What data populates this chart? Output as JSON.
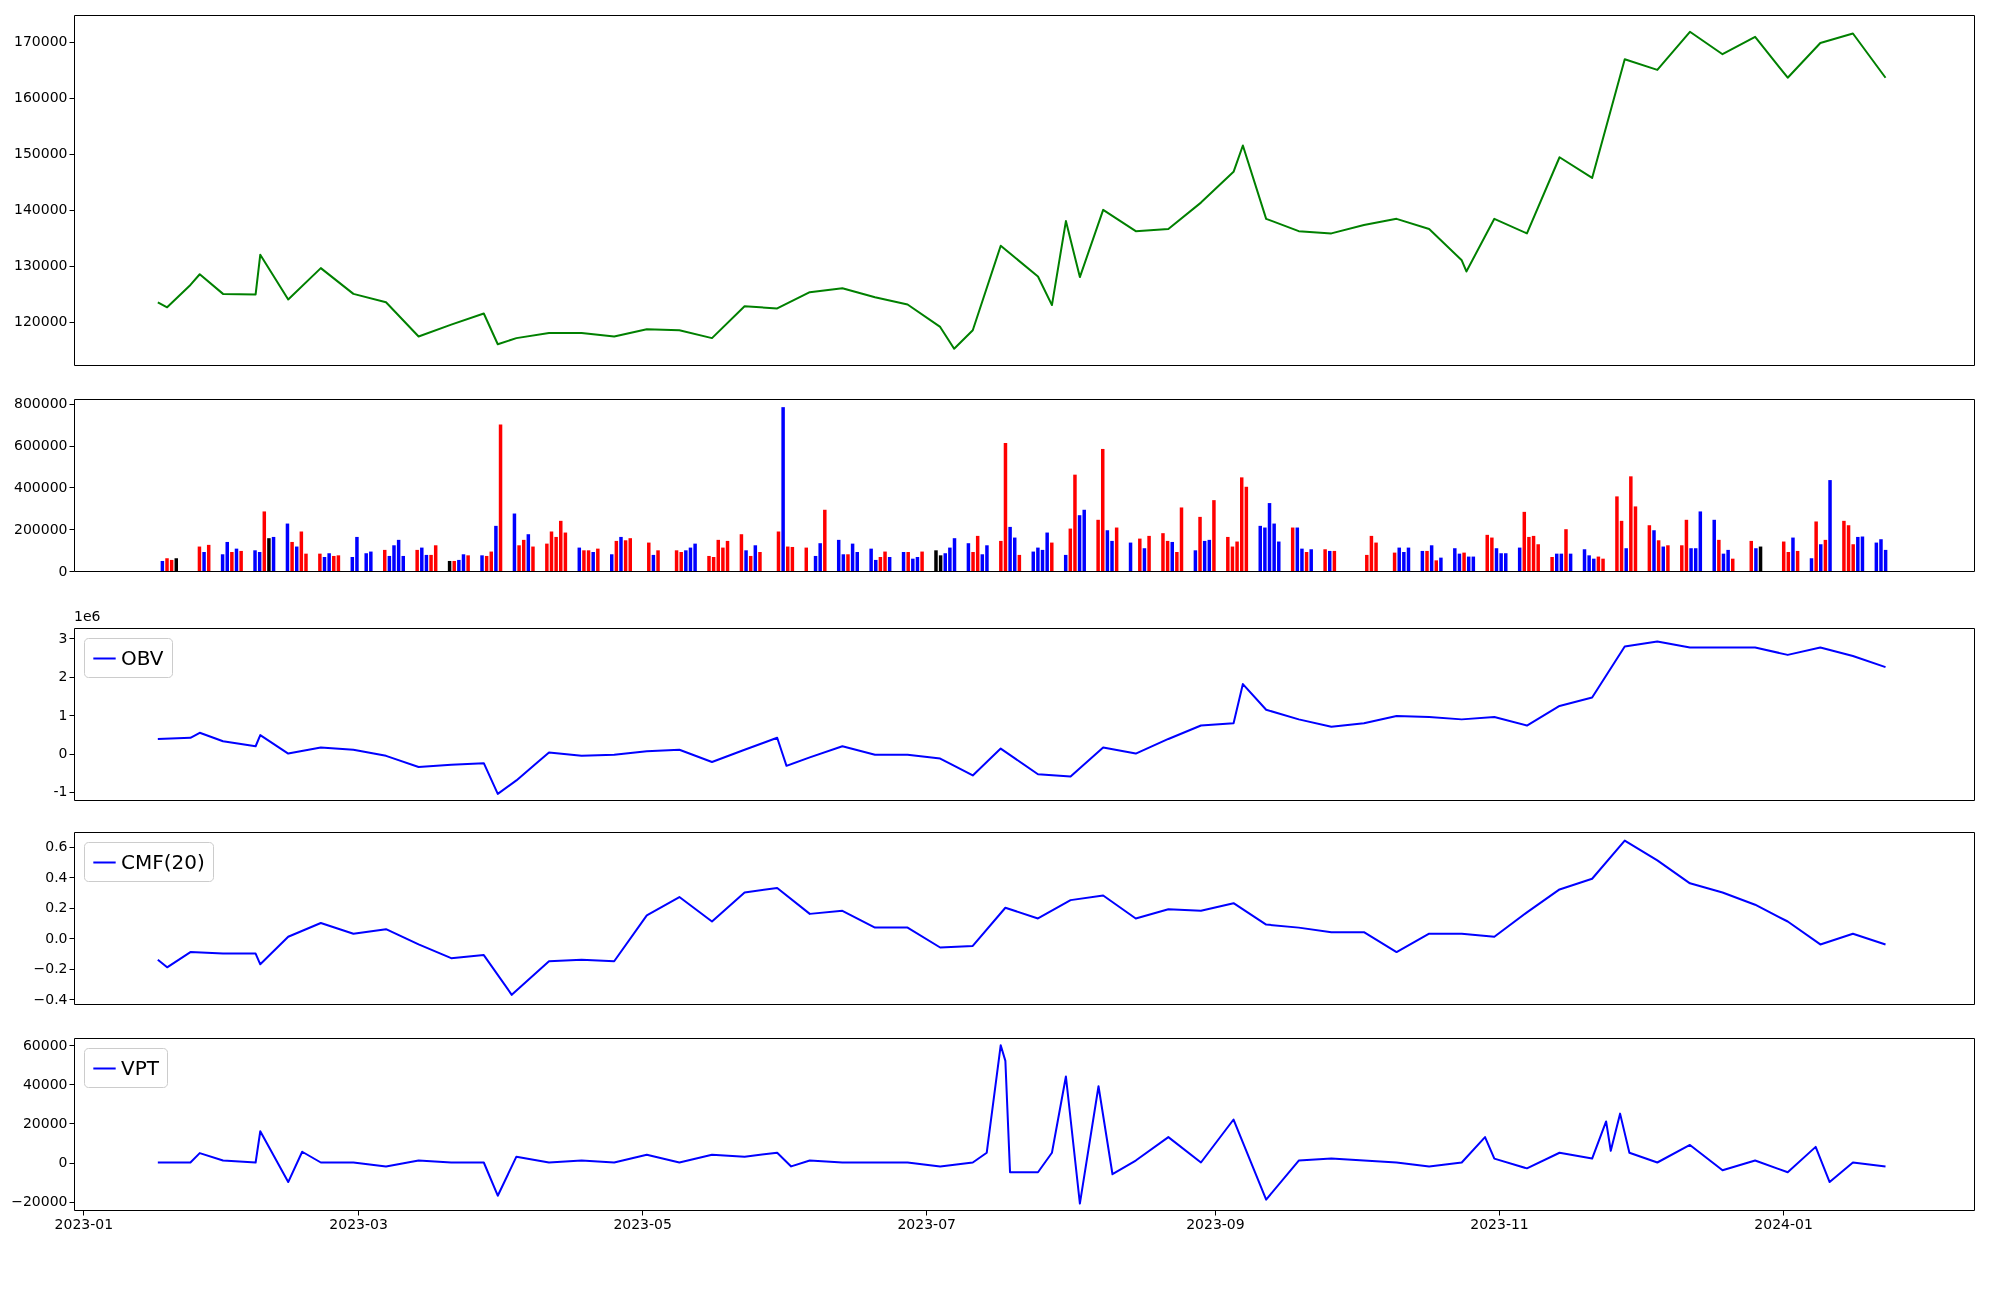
{
  "chart_data": [
    {
      "type": "line",
      "color": "#008000",
      "xlim": [
        "2022-12-30",
        "2024-02-11"
      ],
      "ylim": [
        112300,
        174800
      ],
      "yticks": [
        120000,
        130000,
        140000,
        150000,
        160000,
        170000
      ],
      "tick_labels": "y",
      "x": [
        "2023-01-17",
        "2023-01-19",
        "2023-01-24",
        "2023-01-26",
        "2023-01-31",
        "2023-02-07",
        "2023-02-08",
        "2023-02-14",
        "2023-02-21",
        "2023-02-28",
        "2023-03-07",
        "2023-03-14",
        "2023-03-21",
        "2023-03-28",
        "2023-03-31",
        "2023-04-04",
        "2023-04-11",
        "2023-04-18",
        "2023-04-25",
        "2023-05-02",
        "2023-05-09",
        "2023-05-16",
        "2023-05-23",
        "2023-05-30",
        "2023-06-06",
        "2023-06-13",
        "2023-06-20",
        "2023-06-27",
        "2023-07-04",
        "2023-07-07",
        "2023-07-11",
        "2023-07-17",
        "2023-07-25",
        "2023-07-28",
        "2023-07-31",
        "2023-08-03",
        "2023-08-08",
        "2023-08-15",
        "2023-08-22",
        "2023-08-29",
        "2023-09-05",
        "2023-09-07",
        "2023-09-12",
        "2023-09-19",
        "2023-09-26",
        "2023-10-03",
        "2023-10-10",
        "2023-10-17",
        "2023-10-24",
        "2023-10-25",
        "2023-10-31",
        "2023-11-07",
        "2023-11-14",
        "2023-11-21",
        "2023-11-28",
        "2023-12-05",
        "2023-12-12",
        "2023-12-19",
        "2023-12-26",
        "2024-01-02",
        "2024-01-09",
        "2024-01-16",
        "2024-01-23"
      ],
      "values": [
        123500,
        122600,
        126600,
        128500,
        125000,
        124900,
        132000,
        124000,
        129600,
        125000,
        123500,
        117400,
        119500,
        121500,
        116000,
        117100,
        118000,
        118000,
        117400,
        118700,
        118500,
        117100,
        122800,
        122400,
        125300,
        126000,
        124400,
        123100,
        119100,
        115200,
        118500,
        133600,
        128100,
        123000,
        138000,
        128000,
        140000,
        136200,
        136600,
        141300,
        146800,
        151500,
        138400,
        136200,
        135800,
        137300,
        138400,
        136600,
        131000,
        129000,
        138400,
        135800,
        149400,
        145700,
        166900,
        165000,
        171800,
        167800,
        170900,
        163600,
        169800,
        171500,
        163600
      ]
    },
    {
      "type": "bar",
      "xlim": [
        "2022-12-30",
        "2024-02-11"
      ],
      "ylim": [
        0,
        823000
      ],
      "yticks": [
        0,
        200000,
        400000,
        600000,
        800000
      ],
      "tick_labels": "y",
      "x": [
        "2023-01-17",
        "2023-01-18",
        "2023-01-19",
        "2023-01-20",
        "2023-01-25",
        "2023-01-26",
        "2023-01-27",
        "2023-01-30",
        "2023-01-31",
        "2023-02-01",
        "2023-02-02",
        "2023-02-03",
        "2023-02-06",
        "2023-02-07",
        "2023-02-08",
        "2023-02-09",
        "2023-02-10",
        "2023-02-13",
        "2023-02-14",
        "2023-02-15",
        "2023-02-16",
        "2023-02-17",
        "2023-02-20",
        "2023-02-21",
        "2023-02-22",
        "2023-02-23",
        "2023-02-24",
        "2023-02-27",
        "2023-02-28",
        "2023-03-02",
        "2023-03-03",
        "2023-03-06",
        "2023-03-07",
        "2023-03-08",
        "2023-03-09",
        "2023-03-10",
        "2023-03-13",
        "2023-03-14",
        "2023-03-15",
        "2023-03-16",
        "2023-03-17",
        "2023-03-20",
        "2023-03-21",
        "2023-03-22",
        "2023-03-23",
        "2023-03-24",
        "2023-03-27",
        "2023-03-28",
        "2023-03-29",
        "2023-03-30",
        "2023-03-31",
        "2023-04-03",
        "2023-04-04",
        "2023-04-05",
        "2023-04-06",
        "2023-04-07",
        "2023-04-10",
        "2023-04-11",
        "2023-04-12",
        "2023-04-13",
        "2023-04-14",
        "2023-04-17",
        "2023-04-18",
        "2023-04-19",
        "2023-04-20",
        "2023-04-21",
        "2023-04-24",
        "2023-04-25",
        "2023-04-26",
        "2023-04-27",
        "2023-04-28",
        "2023-05-02",
        "2023-05-03",
        "2023-05-04",
        "2023-05-08",
        "2023-05-09",
        "2023-05-10",
        "2023-05-11",
        "2023-05-12",
        "2023-05-15",
        "2023-05-16",
        "2023-05-17",
        "2023-05-18",
        "2023-05-19",
        "2023-05-22",
        "2023-05-23",
        "2023-05-24",
        "2023-05-25",
        "2023-05-26",
        "2023-05-30",
        "2023-05-31",
        "2023-06-01",
        "2023-06-02",
        "2023-06-05",
        "2023-06-07",
        "2023-06-08",
        "2023-06-09",
        "2023-06-12",
        "2023-06-13",
        "2023-06-14",
        "2023-06-15",
        "2023-06-16",
        "2023-06-19",
        "2023-06-20",
        "2023-06-21",
        "2023-06-22",
        "2023-06-23",
        "2023-06-26",
        "2023-06-27",
        "2023-06-28",
        "2023-06-29",
        "2023-06-30",
        "2023-07-03",
        "2023-07-04",
        "2023-07-05",
        "2023-07-06",
        "2023-07-07",
        "2023-07-10",
        "2023-07-11",
        "2023-07-12",
        "2023-07-13",
        "2023-07-14",
        "2023-07-17",
        "2023-07-18",
        "2023-07-19",
        "2023-07-20",
        "2023-07-21",
        "2023-07-24",
        "2023-07-25",
        "2023-07-26",
        "2023-07-27",
        "2023-07-28",
        "2023-07-31",
        "2023-08-01",
        "2023-08-02",
        "2023-08-03",
        "2023-08-04",
        "2023-08-07",
        "2023-08-08",
        "2023-08-09",
        "2023-08-10",
        "2023-08-11",
        "2023-08-14",
        "2023-08-16",
        "2023-08-17",
        "2023-08-18",
        "2023-08-21",
        "2023-08-22",
        "2023-08-23",
        "2023-08-24",
        "2023-08-25",
        "2023-08-28",
        "2023-08-29",
        "2023-08-30",
        "2023-08-31",
        "2023-09-01",
        "2023-09-04",
        "2023-09-05",
        "2023-09-06",
        "2023-09-07",
        "2023-09-08",
        "2023-09-11",
        "2023-09-12",
        "2023-09-13",
        "2023-09-14",
        "2023-09-15",
        "2023-09-18",
        "2023-09-19",
        "2023-09-20",
        "2023-09-21",
        "2023-09-22",
        "2023-09-25",
        "2023-09-26",
        "2023-09-27",
        "2023-10-04",
        "2023-10-05",
        "2023-10-06",
        "2023-10-10",
        "2023-10-11",
        "2023-10-12",
        "2023-10-13",
        "2023-10-16",
        "2023-10-17",
        "2023-10-18",
        "2023-10-19",
        "2023-10-20",
        "2023-10-23",
        "2023-10-24",
        "2023-10-25",
        "2023-10-26",
        "2023-10-27",
        "2023-10-30",
        "2023-10-31",
        "2023-11-01",
        "2023-11-02",
        "2023-11-03",
        "2023-11-06",
        "2023-11-07",
        "2023-11-08",
        "2023-11-09",
        "2023-11-10",
        "2023-11-13",
        "2023-11-14",
        "2023-11-15",
        "2023-11-16",
        "2023-11-17",
        "2023-11-20",
        "2023-11-21",
        "2023-11-22",
        "2023-11-23",
        "2023-11-24",
        "2023-11-27",
        "2023-11-28",
        "2023-11-29",
        "2023-11-30",
        "2023-12-01",
        "2023-12-04",
        "2023-12-05",
        "2023-12-06",
        "2023-12-07",
        "2023-12-08",
        "2023-12-11",
        "2023-12-12",
        "2023-12-13",
        "2023-12-14",
        "2023-12-15",
        "2023-12-18",
        "2023-12-19",
        "2023-12-20",
        "2023-12-21",
        "2023-12-22",
        "2023-12-26",
        "2023-12-27",
        "2023-12-28",
        "2024-01-02",
        "2024-01-03",
        "2024-01-04",
        "2024-01-05",
        "2024-01-08",
        "2024-01-09",
        "2024-01-10",
        "2024-01-11",
        "2024-01-12",
        "2024-01-15",
        "2024-01-16",
        "2024-01-17",
        "2024-01-18",
        "2024-01-19",
        "2024-01-22",
        "2024-01-23",
        "2024-01-24"
      ],
      "values": [
        48000,
        61000,
        53000,
        61000,
        117000,
        91000,
        125000,
        80000,
        139000,
        91000,
        107000,
        96000,
        99000,
        91000,
        285000,
        157000,
        163000,
        227000,
        139000,
        117000,
        189000,
        83000,
        83000,
        67000,
        85000,
        72000,
        75000,
        67000,
        163000,
        85000,
        93000,
        101000,
        72000,
        123000,
        149000,
        72000,
        101000,
        112000,
        77000,
        77000,
        123000,
        48000,
        48000,
        53000,
        80000,
        75000,
        75000,
        72000,
        93000,
        216000,
        701000,
        275000,
        123000,
        149000,
        176000,
        117000,
        131000,
        189000,
        163000,
        240000,
        184000,
        112000,
        99000,
        99000,
        91000,
        107000,
        80000,
        144000,
        163000,
        147000,
        157000,
        136000,
        77000,
        99000,
        99000,
        91000,
        99000,
        112000,
        131000,
        72000,
        67000,
        149000,
        112000,
        144000,
        176000,
        99000,
        72000,
        123000,
        91000,
        189000,
        784000,
        117000,
        115000,
        112000,
        72000,
        133000,
        293000,
        149000,
        80000,
        80000,
        131000,
        91000,
        107000,
        53000,
        67000,
        93000,
        67000,
        91000,
        91000,
        59000,
        67000,
        93000,
        99000,
        75000,
        85000,
        112000,
        157000,
        133000,
        91000,
        168000,
        80000,
        123000,
        144000,
        613000,
        211000,
        160000,
        77000,
        93000,
        112000,
        101000,
        184000,
        136000,
        77000,
        203000,
        461000,
        267000,
        293000,
        245000,
        584000,
        195000,
        144000,
        208000,
        136000,
        155000,
        109000,
        168000,
        181000,
        144000,
        139000,
        91000,
        304000,
        99000,
        259000,
        144000,
        149000,
        339000,
        163000,
        117000,
        141000,
        448000,
        403000,
        216000,
        208000,
        325000,
        227000,
        141000,
        208000,
        208000,
        107000,
        91000,
        104000,
        104000,
        96000,
        96000,
        77000,
        168000,
        136000,
        88000,
        112000,
        91000,
        112000,
        96000,
        96000,
        123000,
        51000,
        64000,
        109000,
        83000,
        88000,
        69000,
        69000,
        173000,
        160000,
        109000,
        85000,
        85000,
        112000,
        283000,
        163000,
        168000,
        128000,
        67000,
        83000,
        83000,
        200000,
        83000,
        104000,
        75000,
        59000,
        69000,
        59000,
        357000,
        240000,
        109000,
        453000,
        309000,
        219000,
        195000,
        147000,
        117000,
        123000,
        123000,
        245000,
        109000,
        109000,
        285000,
        245000,
        149000,
        83000,
        101000,
        59000,
        144000,
        109000,
        117000,
        141000,
        91000,
        160000,
        96000,
        61000,
        237000,
        128000,
        149000,
        435000,
        240000,
        219000,
        128000,
        163000,
        165000,
        136000,
        152000,
        101000
      ],
      "colors": [
        "#0000ff",
        "#ff0000",
        "#ff0000",
        "#000000",
        "#ff0000",
        "#0000ff",
        "#ff0000",
        "#0000ff",
        "#0000ff",
        "#ff0000",
        "#0000ff",
        "#ff0000",
        "#0000ff",
        "#0000ff",
        "#ff0000",
        "#000000",
        "#0000ff",
        "#0000ff",
        "#ff0000",
        "#0000ff",
        "#ff0000",
        "#ff0000",
        "#ff0000",
        "#0000ff",
        "#0000ff",
        "#ff0000",
        "#ff0000",
        "#0000ff",
        "#0000ff",
        "#0000ff",
        "#0000ff",
        "#ff0000",
        "#0000ff",
        "#0000ff",
        "#0000ff",
        "#0000ff",
        "#ff0000",
        "#0000ff",
        "#0000ff",
        "#ff0000",
        "#ff0000",
        "#000000",
        "#ff0000",
        "#0000ff",
        "#0000ff",
        "#ff0000",
        "#0000ff",
        "#ff0000",
        "#ff0000",
        "#0000ff",
        "#ff0000",
        "#0000ff",
        "#ff0000",
        "#ff0000",
        "#0000ff",
        "#ff0000",
        "#ff0000",
        "#ff0000",
        "#ff0000",
        "#ff0000",
        "#ff0000",
        "#0000ff",
        "#ff0000",
        "#ff0000",
        "#0000ff",
        "#ff0000",
        "#0000ff",
        "#ff0000",
        "#0000ff",
        "#ff0000",
        "#ff0000",
        "#ff0000",
        "#0000ff",
        "#ff0000",
        "#ff0000",
        "#ff0000",
        "#0000ff",
        "#0000ff",
        "#0000ff",
        "#ff0000",
        "#ff0000",
        "#ff0000",
        "#ff0000",
        "#ff0000",
        "#ff0000",
        "#0000ff",
        "#ff0000",
        "#0000ff",
        "#ff0000",
        "#ff0000",
        "#0000ff",
        "#ff0000",
        "#ff0000",
        "#ff0000",
        "#0000ff",
        "#0000ff",
        "#ff0000",
        "#0000ff",
        "#0000ff",
        "#ff0000",
        "#0000ff",
        "#0000ff",
        "#0000ff",
        "#0000ff",
        "#ff0000",
        "#ff0000",
        "#0000ff",
        "#0000ff",
        "#ff0000",
        "#0000ff",
        "#0000ff",
        "#ff0000",
        "#000000",
        "#000000",
        "#0000ff",
        "#0000ff",
        "#0000ff",
        "#0000ff",
        "#ff0000",
        "#ff0000",
        "#0000ff",
        "#0000ff",
        "#ff0000",
        "#ff0000",
        "#0000ff",
        "#0000ff",
        "#ff0000",
        "#0000ff",
        "#0000ff",
        "#0000ff",
        "#0000ff",
        "#ff0000",
        "#0000ff",
        "#ff0000",
        "#ff0000",
        "#0000ff",
        "#0000ff",
        "#ff0000",
        "#ff0000",
        "#0000ff",
        "#0000ff",
        "#ff0000",
        "#0000ff",
        "#ff0000",
        "#0000ff",
        "#ff0000",
        "#ff0000",
        "#ff0000",
        "#0000ff",
        "#ff0000",
        "#ff0000",
        "#0000ff",
        "#ff0000",
        "#0000ff",
        "#0000ff",
        "#ff0000",
        "#ff0000",
        "#ff0000",
        "#ff0000",
        "#ff0000",
        "#ff0000",
        "#0000ff",
        "#0000ff",
        "#0000ff",
        "#0000ff",
        "#0000ff",
        "#ff0000",
        "#0000ff",
        "#0000ff",
        "#ff0000",
        "#0000ff",
        "#ff0000",
        "#0000ff",
        "#ff0000",
        "#ff0000",
        "#ff0000",
        "#ff0000",
        "#ff0000",
        "#0000ff",
        "#0000ff",
        "#0000ff",
        "#0000ff",
        "#ff0000",
        "#0000ff",
        "#ff0000",
        "#0000ff",
        "#0000ff",
        "#0000ff",
        "#ff0000",
        "#0000ff",
        "#0000ff",
        "#ff0000",
        "#ff0000",
        "#0000ff",
        "#0000ff",
        "#0000ff",
        "#0000ff",
        "#ff0000",
        "#ff0000",
        "#ff0000",
        "#ff0000",
        "#ff0000",
        "#0000ff",
        "#0000ff",
        "#ff0000",
        "#0000ff",
        "#0000ff",
        "#0000ff",
        "#0000ff",
        "#ff0000",
        "#ff0000",
        "#ff0000",
        "#ff0000",
        "#0000ff",
        "#ff0000",
        "#ff0000",
        "#ff0000",
        "#0000ff",
        "#ff0000",
        "#0000ff",
        "#ff0000",
        "#ff0000",
        "#ff0000",
        "#0000ff",
        "#0000ff",
        "#0000ff",
        "#0000ff",
        "#ff0000",
        "#0000ff",
        "#0000ff",
        "#ff0000",
        "#ff0000",
        "#0000ff",
        "#000000",
        "#ff0000",
        "#ff0000",
        "#0000ff",
        "#ff0000",
        "#0000ff",
        "#ff0000",
        "#0000ff",
        "#ff0000",
        "#0000ff",
        "#ff0000",
        "#ff0000",
        "#ff0000",
        "#0000ff",
        "#0000ff",
        "#0000ff",
        "#0000ff",
        "#0000ff"
      ]
    },
    {
      "type": "line",
      "xlim": [
        "2022-12-30",
        "2024-02-11"
      ],
      "ylim": [
        -1.21,
        3.27
      ],
      "yticks": [
        -1,
        0,
        1,
        2,
        3
      ],
      "tick_labels": "y",
      "legend": "top left",
      "annotations": [
        "1e6"
      ],
      "x": [
        "2023-01-17",
        "2023-01-24",
        "2023-01-26",
        "2023-01-31",
        "2023-02-07",
        "2023-02-08",
        "2023-02-14",
        "2023-02-21",
        "2023-02-28",
        "2023-03-07",
        "2023-03-14",
        "2023-03-21",
        "2023-03-28",
        "2023-03-31",
        "2023-04-04",
        "2023-04-11",
        "2023-04-18",
        "2023-04-25",
        "2023-05-02",
        "2023-05-09",
        "2023-05-16",
        "2023-05-23",
        "2023-05-30",
        "2023-06-01",
        "2023-06-06",
        "2023-06-13",
        "2023-06-20",
        "2023-06-27",
        "2023-07-04",
        "2023-07-11",
        "2023-07-17",
        "2023-07-25",
        "2023-08-01",
        "2023-08-08",
        "2023-08-15",
        "2023-08-22",
        "2023-08-29",
        "2023-09-05",
        "2023-09-07",
        "2023-09-12",
        "2023-09-19",
        "2023-09-26",
        "2023-10-03",
        "2023-10-10",
        "2023-10-17",
        "2023-10-24",
        "2023-10-31",
        "2023-11-07",
        "2023-11-14",
        "2023-11-21",
        "2023-11-28",
        "2023-12-05",
        "2023-12-12",
        "2023-12-19",
        "2023-12-26",
        "2024-01-02",
        "2024-01-09",
        "2024-01-16",
        "2024-01-23"
      ],
      "series": [
        {
          "name": "OBV",
          "color": "#0000ff",
          "values": [
            0.38,
            0.41,
            0.54,
            0.32,
            0.19,
            0.48,
            0.0,
            0.16,
            0.1,
            -0.06,
            -0.35,
            -0.29,
            -0.25,
            -1.05,
            -0.7,
            0.03,
            -0.06,
            -0.03,
            0.06,
            0.1,
            -0.22,
            0.1,
            0.41,
            -0.32,
            -0.1,
            0.19,
            -0.03,
            -0.03,
            -0.13,
            -0.57,
            0.13,
            -0.54,
            -0.6,
            0.16,
            0.0,
            0.38,
            0.73,
            0.79,
            1.81,
            1.14,
            0.89,
            0.7,
            0.79,
            0.98,
            0.95,
            0.89,
            0.95,
            0.73,
            1.24,
            1.46,
            2.79,
            2.92,
            2.76,
            2.76,
            2.76,
            2.57,
            2.76,
            2.54,
            2.25
          ]
        }
      ]
    },
    {
      "type": "line",
      "xlim": [
        "2022-12-30",
        "2024-02-11"
      ],
      "ylim": [
        -0.43,
        0.696
      ],
      "yticks": [
        {
          "value": -0.4,
          "label": "−0.4"
        },
        {
          "value": -0.2,
          "label": "−0.2"
        },
        {
          "value": 0,
          "label": "0.0"
        },
        {
          "value": 0.2,
          "label": "0.2"
        },
        {
          "value": 0.4,
          "label": "0.4"
        },
        {
          "value": 0.6,
          "label": "0.6"
        }
      ],
      "tick_labels": "y",
      "legend": "top left",
      "x": [
        "2023-01-17",
        "2023-01-19",
        "2023-01-24",
        "2023-01-31",
        "2023-02-07",
        "2023-02-08",
        "2023-02-14",
        "2023-02-21",
        "2023-02-28",
        "2023-03-07",
        "2023-03-14",
        "2023-03-21",
        "2023-03-28",
        "2023-04-03",
        "2023-04-11",
        "2023-04-18",
        "2023-04-25",
        "2023-05-02",
        "2023-05-09",
        "2023-05-16",
        "2023-05-23",
        "2023-05-30",
        "2023-06-06",
        "2023-06-13",
        "2023-06-20",
        "2023-06-27",
        "2023-07-04",
        "2023-07-11",
        "2023-07-18",
        "2023-07-25",
        "2023-08-01",
        "2023-08-08",
        "2023-08-15",
        "2023-08-22",
        "2023-08-29",
        "2023-09-05",
        "2023-09-12",
        "2023-09-19",
        "2023-09-26",
        "2023-10-03",
        "2023-10-10",
        "2023-10-17",
        "2023-10-24",
        "2023-10-31",
        "2023-11-07",
        "2023-11-14",
        "2023-11-21",
        "2023-11-28",
        "2023-12-05",
        "2023-12-12",
        "2023-12-19",
        "2023-12-26",
        "2024-01-02",
        "2024-01-09",
        "2024-01-16",
        "2024-01-23"
      ],
      "series": [
        {
          "name": "CMF(20)",
          "color": "#0000ff",
          "values": [
            -0.14,
            -0.19,
            -0.09,
            -0.1,
            -0.1,
            -0.17,
            0.01,
            0.1,
            0.03,
            0.06,
            -0.04,
            -0.13,
            -0.11,
            -0.37,
            -0.15,
            -0.14,
            -0.15,
            0.15,
            0.27,
            0.11,
            0.3,
            0.33,
            0.16,
            0.18,
            0.07,
            0.07,
            -0.06,
            -0.05,
            0.2,
            0.13,
            0.25,
            0.28,
            0.13,
            0.19,
            0.18,
            0.23,
            0.09,
            0.07,
            0.04,
            0.04,
            -0.09,
            0.03,
            0.03,
            0.01,
            0.17,
            0.32,
            0.39,
            0.64,
            0.51,
            0.36,
            0.3,
            0.22,
            0.11,
            -0.04,
            0.03,
            -0.04
          ]
        }
      ]
    },
    {
      "type": "line",
      "xlim": [
        "2022-12-30",
        "2024-02-11"
      ],
      "ylim": [
        -24300,
        63700
      ],
      "yticks": [
        {
          "value": -20000,
          "label": "−20000"
        },
        0,
        20000,
        40000,
        60000
      ],
      "xticks": [
        "2023-01",
        "2023-03",
        "2023-05",
        "2023-07",
        "2023-09",
        "2023-11",
        "2024-01"
      ],
      "legend": "top left",
      "x": [
        "2023-01-17",
        "2023-01-24",
        "2023-01-26",
        "2023-01-31",
        "2023-02-07",
        "2023-02-08",
        "2023-02-14",
        "2023-02-17",
        "2023-02-21",
        "2023-02-28",
        "2023-03-07",
        "2023-03-14",
        "2023-03-21",
        "2023-03-28",
        "2023-03-31",
        "2023-04-04",
        "2023-04-11",
        "2023-04-18",
        "2023-04-25",
        "2023-05-02",
        "2023-05-09",
        "2023-05-16",
        "2023-05-23",
        "2023-05-30",
        "2023-06-02",
        "2023-06-06",
        "2023-06-13",
        "2023-06-20",
        "2023-06-27",
        "2023-07-04",
        "2023-07-11",
        "2023-07-14",
        "2023-07-17",
        "2023-07-18",
        "2023-07-19",
        "2023-07-25",
        "2023-07-28",
        "2023-07-31",
        "2023-08-03",
        "2023-08-07",
        "2023-08-10",
        "2023-08-15",
        "2023-08-22",
        "2023-08-29",
        "2023-09-05",
        "2023-09-12",
        "2023-09-19",
        "2023-09-26",
        "2023-10-03",
        "2023-10-10",
        "2023-10-17",
        "2023-10-24",
        "2023-10-29",
        "2023-10-31",
        "2023-11-07",
        "2023-11-14",
        "2023-11-21",
        "2023-11-24",
        "2023-11-25",
        "2023-11-27",
        "2023-11-29",
        "2023-12-05",
        "2023-12-12",
        "2023-12-19",
        "2023-12-26",
        "2024-01-02",
        "2024-01-08",
        "2024-01-11",
        "2024-01-16",
        "2024-01-23"
      ],
      "series": [
        {
          "name": "VPT",
          "color": "#0000ff",
          "values": [
            0,
            0,
            4800,
            1000,
            0,
            16000,
            -10000,
            5500,
            0,
            0,
            -2000,
            1000,
            0,
            0,
            -17000,
            3000,
            0,
            1000,
            0,
            4000,
            0,
            4000,
            3000,
            5000,
            -2000,
            1000,
            0,
            0,
            0,
            -2000,
            0,
            5000,
            60000,
            52000,
            -5000,
            -5000,
            5000,
            44000,
            -21000,
            39000,
            -6000,
            1000,
            13000,
            0,
            22000,
            -19000,
            1000,
            2000,
            1000,
            0,
            -2000,
            0,
            13000,
            2000,
            -3000,
            5000,
            2000,
            21000,
            6000,
            25000,
            5000,
            0,
            9000,
            -4000,
            1000,
            -5000,
            8000,
            -10000,
            0,
            -2000
          ]
        }
      ]
    }
  ]
}
